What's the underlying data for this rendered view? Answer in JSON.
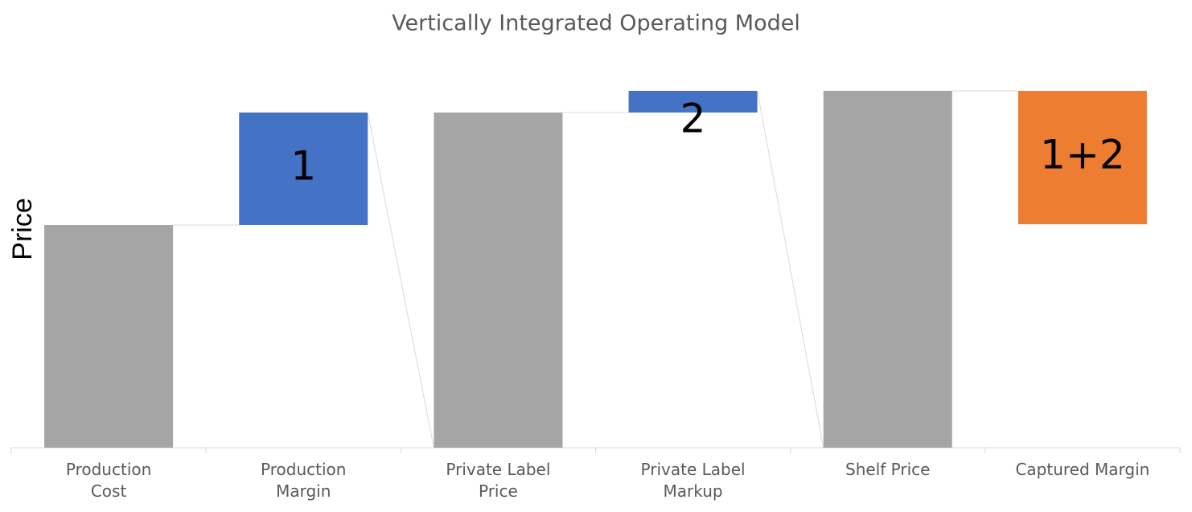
{
  "chart_data": {
    "type": "waterfall",
    "title": "Vertically Integrated Operating Model",
    "y_label": "Price",
    "categories": [
      "Production\nCost",
      "Production\nMargin",
      "Private Label\nPrice",
      "Private Label\nMarkup",
      "Shelf Price",
      "Captured Margin"
    ],
    "values": [
      277,
      140,
      417,
      27,
      444,
      166
    ],
    "kinds": [
      "total",
      "increase",
      "total",
      "increase",
      "total",
      "decrease"
    ],
    "colors": [
      "#a5a5a5",
      "#4472c4",
      "#a5a5a5",
      "#4472c4",
      "#a5a5a5",
      "#ed7d31"
    ],
    "labels": [
      null,
      "1",
      null,
      "2",
      null,
      "1+2"
    ],
    "ylim": [
      0,
      450
    ]
  }
}
